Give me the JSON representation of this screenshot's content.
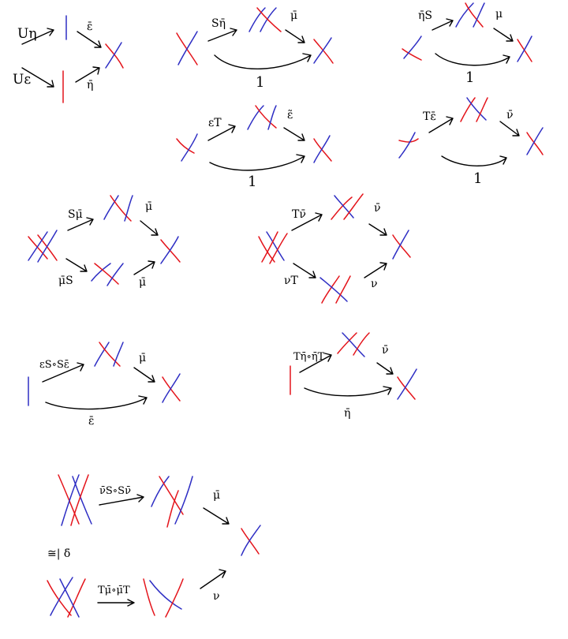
{
  "colors": {
    "red": "#e4141b",
    "blue": "#2e2ec4",
    "ink": "#000000"
  },
  "labels": {
    "u_eta": "Uη",
    "u_eps": "Uε",
    "eps_bar": "ε̄",
    "eta_bar": "η̄",
    "s_eta_bar": "Sη̄",
    "mu_bar": "μ̄",
    "one": "1",
    "eta_bar_s": "η̄S",
    "mu": "μ",
    "eps_t": "εT",
    "eps_tilde": "ε̃",
    "t_eps_bar": "Tε̄",
    "nu_bar": "ν̄",
    "s_mu_bar": "Sμ̄",
    "mu_bar_s": "μ̄S",
    "t_nu_bar": "Tν̄",
    "nu_t": "νT",
    "nu": "ν",
    "eps_s_o_s_eps": "εS∘Sε̄",
    "t_eta_o_eta_t": "Tη̄∘η̄T",
    "nu_s_o_s_nu": "ν̄S∘Sν̄",
    "t_mu_o_mu_t": "Tμ̄∘μ̄T",
    "iso_delta": "≅| δ̄"
  }
}
